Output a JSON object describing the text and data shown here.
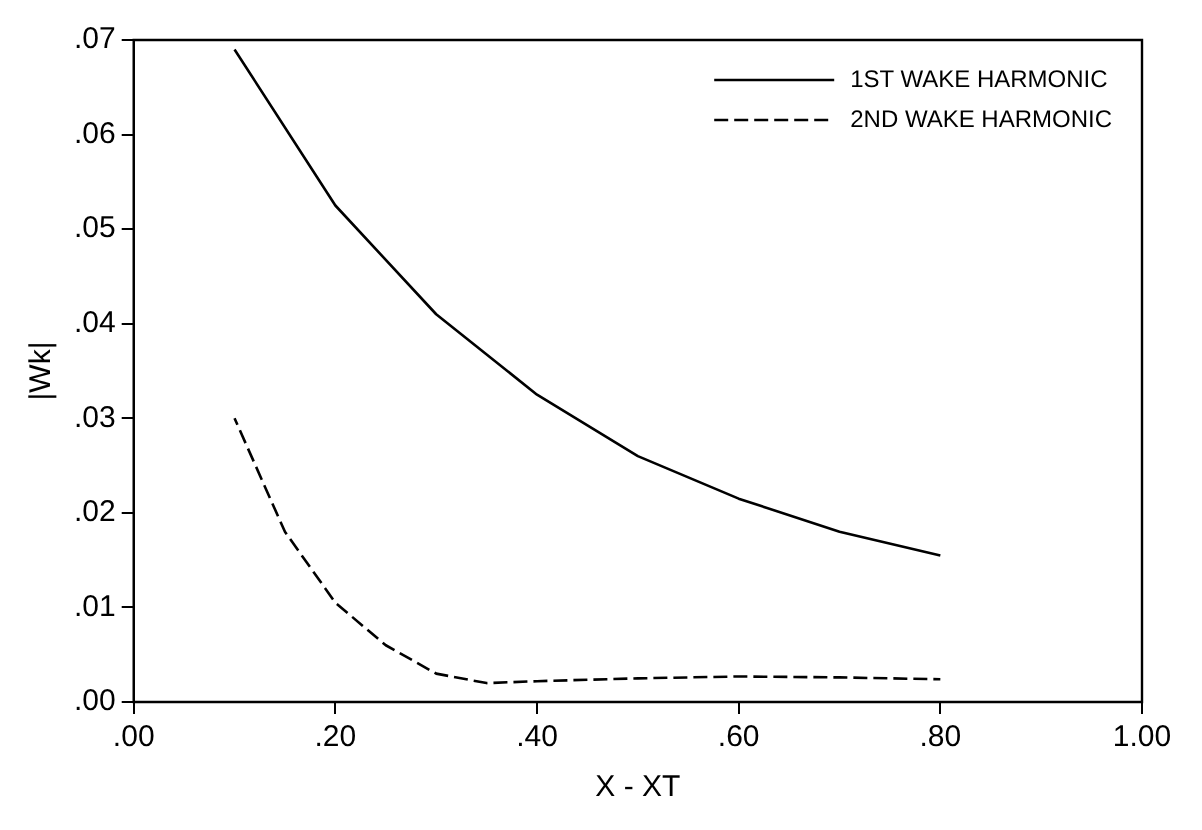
{
  "chart_data": {
    "type": "line",
    "xlabel": "X - XT",
    "ylabel": "|Wk|",
    "xlim": [
      0,
      1
    ],
    "xticks": [
      {
        "value": 0,
        "label": ".00"
      },
      {
        "value": 0.2,
        "label": ".20"
      },
      {
        "value": 0.4,
        "label": ".40"
      },
      {
        "value": 0.6,
        "label": ".60"
      },
      {
        "value": 0.8,
        "label": ".80"
      },
      {
        "value": 1,
        "label": "1.00"
      }
    ],
    "ylim": [
      0,
      0.07
    ],
    "yticks": [
      {
        "value": 0,
        "label": ".00"
      },
      {
        "value": 0.01,
        "label": ".01"
      },
      {
        "value": 0.02,
        "label": ".02"
      },
      {
        "value": 0.03,
        "label": ".03"
      },
      {
        "value": 0.04,
        "label": ".04"
      },
      {
        "value": 0.05,
        "label": ".05"
      },
      {
        "value": 0.06,
        "label": ".06"
      },
      {
        "value": 0.07,
        "label": ".07"
      }
    ],
    "grid": false,
    "legend": "top right",
    "marker": "none",
    "series": [
      {
        "name": "1ST WAKE HARMONIC",
        "color": "#000000",
        "line_style": "solid",
        "x": [
          0.1,
          0.2,
          0.3,
          0.4,
          0.5,
          0.6,
          0.7,
          0.8
        ],
        "values": [
          0.069,
          0.0525,
          0.041,
          0.0325,
          0.026,
          0.0215,
          0.018,
          0.0155
        ]
      },
      {
        "name": "2ND WAKE HARMONIC",
        "color": "#000000",
        "line_style": "dashed",
        "x": [
          0.1,
          0.15,
          0.2,
          0.25,
          0.3,
          0.35,
          0.4,
          0.5,
          0.6,
          0.7,
          0.8
        ],
        "values": [
          0.03,
          0.018,
          0.0105,
          0.006,
          0.003,
          0.002,
          0.0022,
          0.0025,
          0.0027,
          0.0026,
          0.0024
        ]
      }
    ]
  }
}
